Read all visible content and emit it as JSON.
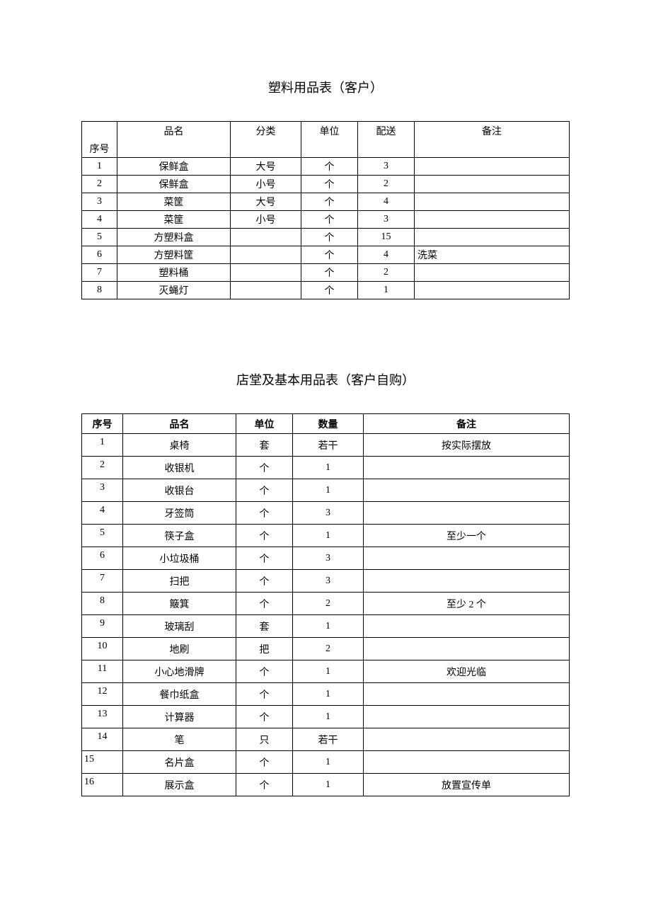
{
  "table1": {
    "title": "塑料用品表（客户）",
    "headers": {
      "seq": "序号",
      "name": "品名",
      "category": "分类",
      "unit": "单位",
      "delivery": "配送",
      "note": "备注"
    },
    "rows": [
      {
        "seq": "1",
        "name": "保鲜盒",
        "category": "大号",
        "unit": "个",
        "delivery": "3",
        "note": ""
      },
      {
        "seq": "2",
        "name": "保鲜盒",
        "category": "小号",
        "unit": "个",
        "delivery": "2",
        "note": ""
      },
      {
        "seq": "3",
        "name": "菜筐",
        "category": "大号",
        "unit": "个",
        "delivery": "4",
        "note": ""
      },
      {
        "seq": "4",
        "name": "菜筐",
        "category": "小号",
        "unit": "个",
        "delivery": "3",
        "note": ""
      },
      {
        "seq": "5",
        "name": "方塑料盒",
        "category": "",
        "unit": "个",
        "delivery": "15",
        "note": ""
      },
      {
        "seq": "6",
        "name": "方塑料筐",
        "category": "",
        "unit": "个",
        "delivery": "4",
        "note": "洗菜"
      },
      {
        "seq": "7",
        "name": "塑料桶",
        "category": "",
        "unit": "个",
        "delivery": "2",
        "note": ""
      },
      {
        "seq": "8",
        "name": "灭蝇灯",
        "category": "",
        "unit": "个",
        "delivery": "1",
        "note": ""
      }
    ]
  },
  "table2": {
    "title": "店堂及基本用品表（客户自购）",
    "headers": {
      "seq": "序号",
      "name": "品名",
      "unit": "单位",
      "qty": "数量",
      "note": "备注"
    },
    "rows": [
      {
        "seq": "1",
        "name": "桌椅",
        "unit": "套",
        "qty": "若干",
        "note": "按实际摆放"
      },
      {
        "seq": "2",
        "name": "收银机",
        "unit": "个",
        "qty": "1",
        "note": ""
      },
      {
        "seq": "3",
        "name": "收银台",
        "unit": "个",
        "qty": "1",
        "note": ""
      },
      {
        "seq": "4",
        "name": "牙签筒",
        "unit": "个",
        "qty": "3",
        "note": ""
      },
      {
        "seq": "5",
        "name": "筷子盒",
        "unit": "个",
        "qty": "1",
        "note": "至少一个"
      },
      {
        "seq": "6",
        "name": "小垃圾桶",
        "unit": "个",
        "qty": "3",
        "note": ""
      },
      {
        "seq": "7",
        "name": "扫把",
        "unit": "个",
        "qty": "3",
        "note": ""
      },
      {
        "seq": "8",
        "name": "簸箕",
        "unit": "个",
        "qty": "2",
        "note": "至少 2 个"
      },
      {
        "seq": "9",
        "name": "玻璃刮",
        "unit": "套",
        "qty": "1",
        "note": ""
      },
      {
        "seq": "10",
        "name": "地刷",
        "unit": "把",
        "qty": "2",
        "note": ""
      },
      {
        "seq": "11",
        "name": "小心地滑牌",
        "unit": "个",
        "qty": "1",
        "note": "欢迎光临"
      },
      {
        "seq": "12",
        "name": "餐巾纸盒",
        "unit": "个",
        "qty": "1",
        "note": ""
      },
      {
        "seq": "13",
        "name": "计算器",
        "unit": "个",
        "qty": "1",
        "note": ""
      },
      {
        "seq": "14",
        "name": "笔",
        "unit": "只",
        "qty": "若干",
        "note": ""
      },
      {
        "seq": "15",
        "name": "名片盒",
        "unit": "个",
        "qty": "1",
        "note": "",
        "seqLeft": true
      },
      {
        "seq": "16",
        "name": "展示盒",
        "unit": "个",
        "qty": "1",
        "note": "放置宣传单",
        "seqLeft": true
      }
    ]
  }
}
